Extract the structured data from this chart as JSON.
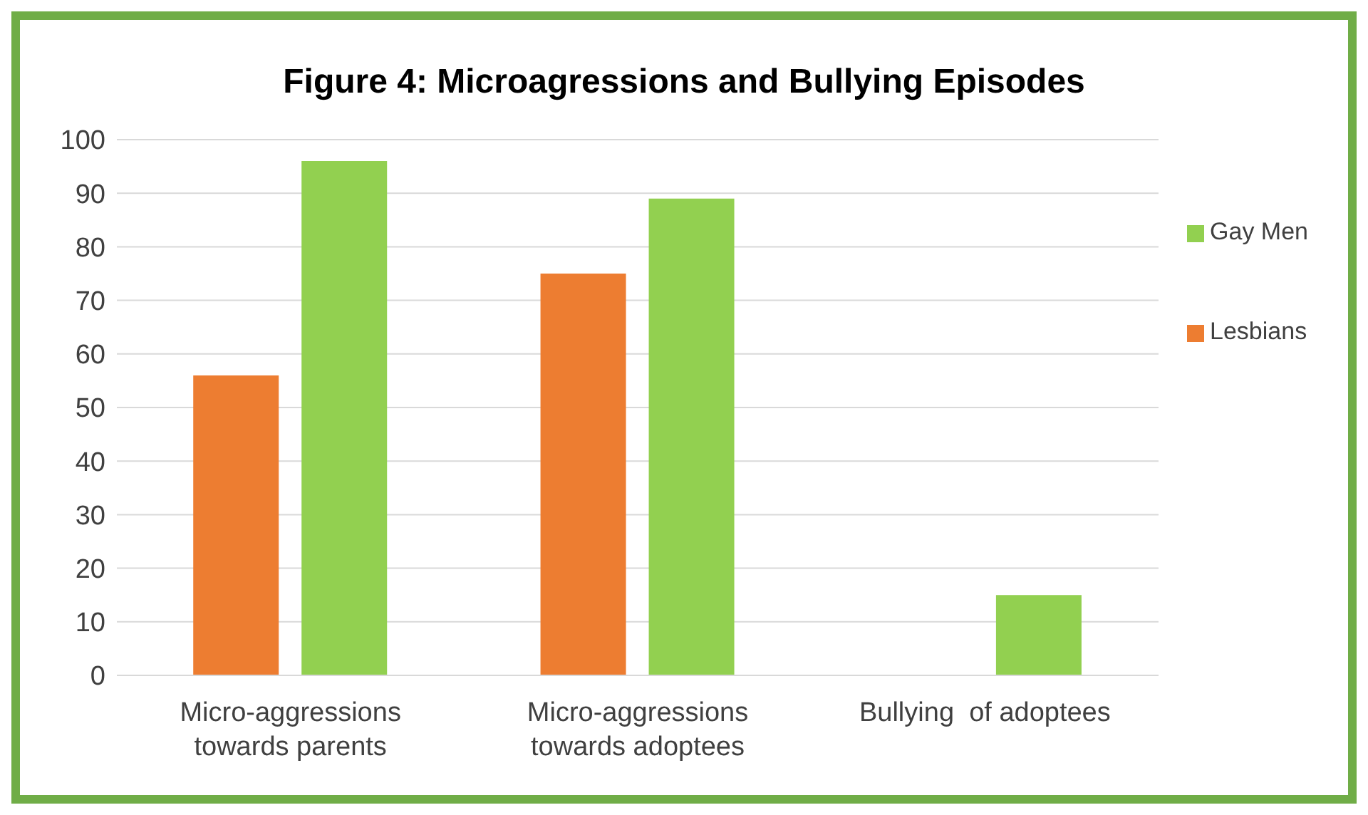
{
  "chart_data": {
    "type": "bar",
    "title": "Figure 4: Microagressions and Bullying Episodes",
    "categories": [
      "Micro-aggressions towards parents",
      "Micro-aggressions towards adoptees",
      "Bullying  of adoptees"
    ],
    "series": [
      {
        "name": "Lesbians",
        "color": "#ed7d31",
        "values": [
          56,
          75,
          0
        ]
      },
      {
        "name": "Gay Men",
        "color": "#92d050",
        "values": [
          96,
          89,
          15
        ]
      }
    ],
    "ylim": [
      0,
      100
    ],
    "yticks": [
      0,
      10,
      20,
      30,
      40,
      50,
      60,
      70,
      80,
      90,
      100
    ],
    "grid": "y",
    "legend": "right"
  }
}
